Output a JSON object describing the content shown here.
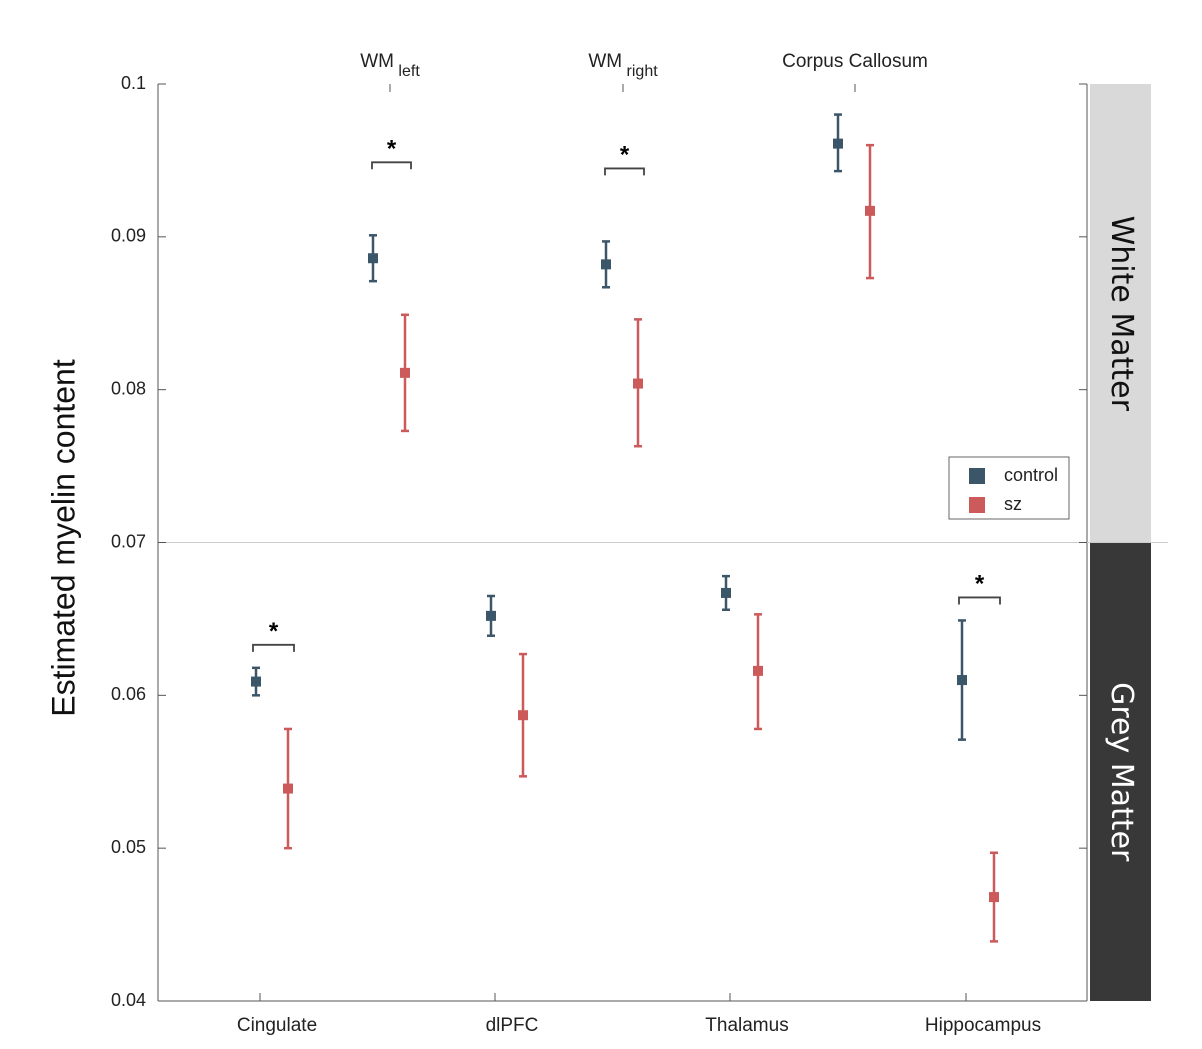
{
  "chart_data": {
    "type": "scatter",
    "ylabel": "Estimated myelin content",
    "ylim": [
      0.04,
      0.1
    ],
    "yticks": [
      "0.04",
      "0.05",
      "0.06",
      "0.07",
      "0.08",
      "0.09",
      "0.1"
    ],
    "ytick_values": [
      0.04,
      0.05,
      0.06,
      0.07,
      0.08,
      0.09,
      0.1
    ],
    "legend": {
      "position": "right-middle",
      "entries": [
        {
          "label": "control",
          "color": "#3b5569"
        },
        {
          "label": "sz",
          "color": "#cc5a5a"
        }
      ]
    },
    "panels": [
      {
        "name": "White Matter",
        "band_color": "#d9d9d9",
        "text_color": "#111111",
        "categories": [
          {
            "label_main": "WM",
            "label_sub": "left",
            "significant": true,
            "control": {
              "mean": 0.0886,
              "lower": 0.0871,
              "upper": 0.0901
            },
            "sz": {
              "mean": 0.0811,
              "lower": 0.0773,
              "upper": 0.0849
            }
          },
          {
            "label_main": "WM",
            "label_sub": "right",
            "significant": true,
            "control": {
              "mean": 0.0882,
              "lower": 0.0867,
              "upper": 0.0897
            },
            "sz": {
              "mean": 0.0804,
              "lower": 0.0763,
              "upper": 0.0846
            }
          },
          {
            "label_main": "Corpus Callosum",
            "label_sub": "",
            "significant": false,
            "control": {
              "mean": 0.0961,
              "lower": 0.0943,
              "upper": 0.098
            },
            "sz": {
              "mean": 0.0917,
              "lower": 0.0873,
              "upper": 0.096
            }
          }
        ]
      },
      {
        "name": "Grey Matter",
        "band_color": "#383838",
        "text_color": "#ffffff",
        "categories": [
          {
            "label_main": "Cingulate",
            "label_sub": "",
            "significant": true,
            "control": {
              "mean": 0.0609,
              "lower": 0.06,
              "upper": 0.0618
            },
            "sz": {
              "mean": 0.0539,
              "lower": 0.05,
              "upper": 0.0578
            }
          },
          {
            "label_main": "dlPFC",
            "label_sub": "",
            "significant": false,
            "control": {
              "mean": 0.0652,
              "lower": 0.0639,
              "upper": 0.0665
            },
            "sz": {
              "mean": 0.0587,
              "lower": 0.0547,
              "upper": 0.0627
            }
          },
          {
            "label_main": "Thalamus",
            "label_sub": "",
            "significant": false,
            "control": {
              "mean": 0.0667,
              "lower": 0.0656,
              "upper": 0.0678
            },
            "sz": {
              "mean": 0.0616,
              "lower": 0.0578,
              "upper": 0.0653
            }
          },
          {
            "label_main": "Hippocampus",
            "label_sub": "",
            "significant": true,
            "control": {
              "mean": 0.061,
              "lower": 0.0571,
              "upper": 0.0649
            },
            "sz": {
              "mean": 0.0468,
              "lower": 0.0439,
              "upper": 0.0497
            }
          }
        ]
      }
    ],
    "significance_marker": "*"
  }
}
